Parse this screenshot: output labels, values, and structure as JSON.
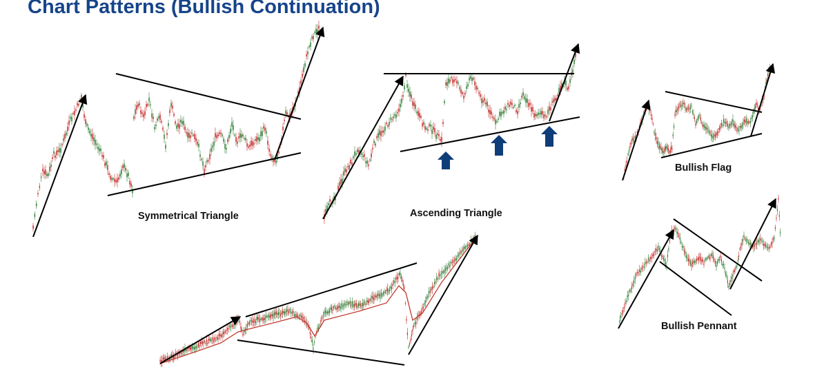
{
  "title": "Chart Patterns (Bullish Continuation)",
  "colors": {
    "title": "#16448a",
    "line": "#000000",
    "candle_up": "#2e7d32",
    "candle_down": "#c62828",
    "moving_average": "#c0392b",
    "marker_arrow": "#0f3d7a"
  },
  "patterns": [
    {
      "id": "symmetrical-triangle",
      "label": "Symmetrical Triangle"
    },
    {
      "id": "ascending-triangle",
      "label": "Ascending Triangle"
    },
    {
      "id": "broadening-wedge",
      "label": ""
    },
    {
      "id": "bullish-flag",
      "label": "Bullish Flag"
    },
    {
      "id": "bullish-pennant",
      "label": "Bullish Pennant"
    }
  ]
}
